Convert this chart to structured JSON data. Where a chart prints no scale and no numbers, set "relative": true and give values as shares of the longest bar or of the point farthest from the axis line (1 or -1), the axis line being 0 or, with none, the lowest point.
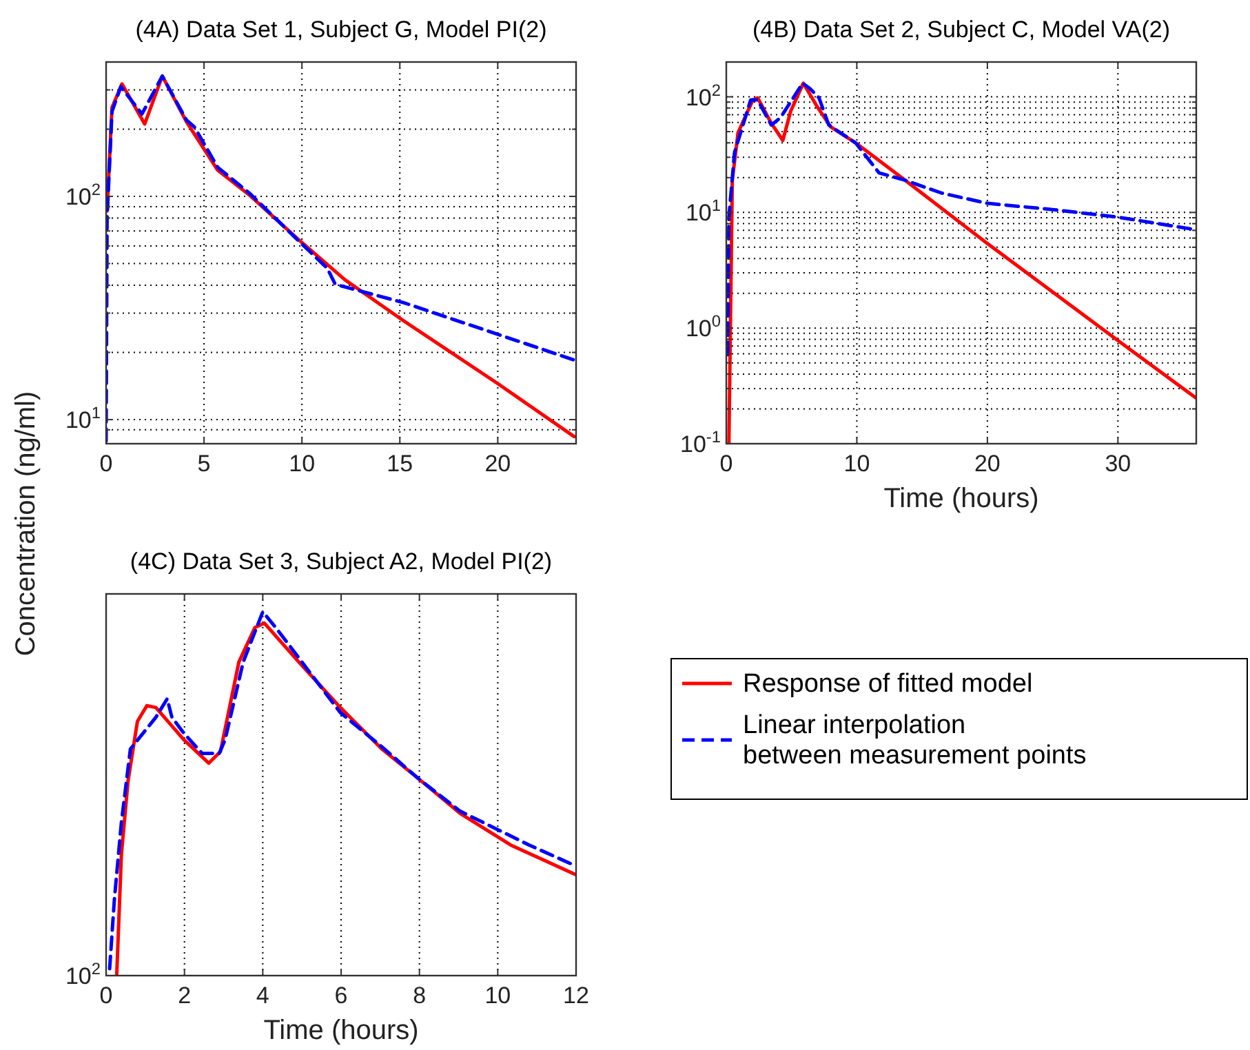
{
  "chart_data": [
    {
      "type": "line",
      "title": "(4A) Data Set 1, Subject G, Model PI(2)",
      "log": "y",
      "grid": true,
      "legend": false,
      "xlim": [
        0,
        24
      ],
      "xticks": [
        0,
        5,
        10,
        15,
        20
      ],
      "ylim": [
        7.8,
        400
      ],
      "yticks": [
        {
          "value": 9,
          "label": null
        },
        {
          "value": 10,
          "label": "10$^{1}$"
        },
        {
          "value": 20,
          "label": null
        },
        {
          "value": 30,
          "label": null
        },
        {
          "value": 40,
          "label": null
        },
        {
          "value": 50,
          "label": null
        },
        {
          "value": 60,
          "label": null
        },
        {
          "value": 70,
          "label": null
        },
        {
          "value": 80,
          "label": null
        },
        {
          "value": 90,
          "label": null
        },
        {
          "value": 100,
          "label": "10$^{2}$"
        },
        {
          "value": 200,
          "label": null
        },
        {
          "value": 300,
          "label": null
        }
      ],
      "series": [
        {
          "color": "#ff0000",
          "line_style": "solid",
          "x": [
            0.05,
            0.3,
            0.81,
            1.97,
            2.87,
            4.1,
            5.7,
            7.34,
            9.77,
            12.2,
            15.2,
            20,
            23.9
          ],
          "values": [
            86,
            250,
            319,
            211,
            346,
            216,
            131,
            101,
            64.7,
            42.3,
            27.7,
            14.5,
            8.4
          ]
        },
        {
          "color": "#0000ff",
          "line_style": "dashed",
          "x": [
            0,
            0.05,
            0.3,
            0.75,
            1.83,
            2.87,
            4.1,
            4.5,
            5.7,
            7.34,
            9.77,
            11.3,
            11.7,
            15.2,
            23.9
          ],
          "values": [
            8,
            80,
            240,
            310,
            234,
            346,
            220,
            205,
            135,
            103,
            64,
            47.6,
            40.4,
            33.4,
            18.5
          ]
        }
      ]
    },
    {
      "type": "line",
      "title": "(4B) Data Set 2, Subject C, Model VA(2)",
      "xlabel": "Time (hours)",
      "log": "y",
      "grid": true,
      "legend": false,
      "xlim": [
        0,
        36
      ],
      "xticks": [
        0,
        10,
        20,
        30
      ],
      "ylim": [
        0.1,
        200
      ],
      "yticks": [
        {
          "value": 0.1,
          "label": "10$^{-1}$"
        },
        {
          "value": 0.2,
          "label": null
        },
        {
          "value": 0.3,
          "label": null
        },
        {
          "value": 0.4,
          "label": null
        },
        {
          "value": 0.5,
          "label": null
        },
        {
          "value": 0.6,
          "label": null
        },
        {
          "value": 0.7,
          "label": null
        },
        {
          "value": 0.8,
          "label": null
        },
        {
          "value": 0.9,
          "label": null
        },
        {
          "value": 1,
          "label": "10$^{0}$"
        },
        {
          "value": 2,
          "label": null
        },
        {
          "value": 3,
          "label": null
        },
        {
          "value": 4,
          "label": null
        },
        {
          "value": 5,
          "label": null
        },
        {
          "value": 6,
          "label": null
        },
        {
          "value": 7,
          "label": null
        },
        {
          "value": 8,
          "label": null
        },
        {
          "value": 9,
          "label": null
        },
        {
          "value": 10,
          "label": "10$^{1}$"
        },
        {
          "value": 20,
          "label": null
        },
        {
          "value": 30,
          "label": null
        },
        {
          "value": 40,
          "label": null
        },
        {
          "value": 50,
          "label": null
        },
        {
          "value": 60,
          "label": null
        },
        {
          "value": 70,
          "label": null
        },
        {
          "value": 80,
          "label": null
        },
        {
          "value": 90,
          "label": null
        },
        {
          "value": 100,
          "label": "10$^{2}$"
        }
      ],
      "series": [
        {
          "color": "#ff0000",
          "line_style": "solid",
          "x": [
            0.2,
            0.46,
            0.9,
            2.04,
            2.4,
            3.45,
            4.33,
            4.93,
            5.9,
            6.97,
            8.0,
            9.9,
            12.96,
            19.9,
            30,
            35.95
          ],
          "values": [
            0.1,
            19,
            49,
            94,
            98,
            59,
            42,
            75,
            131,
            82,
            55,
            40,
            22,
            5.5,
            0.78,
            0.25
          ]
        },
        {
          "color": "#0000ff",
          "line_style": "dashed",
          "x": [
            0.1,
            0.2,
            0.63,
            1.87,
            2.4,
            3.45,
            4.15,
            5.85,
            6.4,
            7.1,
            7.85,
            9.9,
            11.7,
            13.7,
            16.5,
            20,
            25.3,
            30,
            35.95
          ],
          "values": [
            0.59,
            9.1,
            33,
            94,
            94,
            57,
            66,
            131,
            118,
            98,
            57,
            40,
            22,
            19,
            14.7,
            12,
            10.5,
            9.1,
            7.1
          ]
        }
      ]
    },
    {
      "type": "line",
      "title": "(4C) Data Set 3, Subject A2, Model PI(2)",
      "xlabel": "Time (hours)",
      "ylabel": "Concentration (ng/ml)",
      "relative": true,
      "grid": "x",
      "legend": "right",
      "xlim": [
        0,
        12
      ],
      "xticks": [
        0,
        2,
        4,
        6,
        8,
        10,
        12
      ],
      "annotations": [
        "10$^{2}$"
      ],
      "series": [
        {
          "name": "Response of fitted model",
          "color": "#ff0000",
          "line_style": "solid",
          "x": [
            0.27,
            0.39,
            0.56,
            0.8,
            1.04,
            1.27,
            1.98,
            2.62,
            2.92,
            3.39,
            3.8,
            4.04,
            4.92,
            5.98,
            7.04,
            7.98,
            9.04,
            10.33,
            12
          ],
          "values": [
            0,
            0.333,
            0.535,
            0.699,
            0.742,
            0.737,
            0.649,
            0.584,
            0.616,
            0.862,
            0.957,
            0.969,
            0.862,
            0.737,
            0.623,
            0.541,
            0.446,
            0.359,
            0.277
          ]
        },
        {
          "name": "Linear interpolation between measurement points",
          "color": "#0000ff",
          "line_style": "dashed",
          "x": [
            0.09,
            0.21,
            0.39,
            0.62,
            1.27,
            1.56,
            1.68,
            1.98,
            2.45,
            2.89,
            3.04,
            3.5,
            4.0,
            4.33,
            5.98,
            7.04,
            7.98,
            9.04,
            10.8,
            12
          ],
          "values": [
            0.019,
            0.208,
            0.421,
            0.623,
            0.71,
            0.761,
            0.71,
            0.667,
            0.611,
            0.611,
            0.649,
            0.862,
            1,
            0.957,
            0.723,
            0.629,
            0.541,
            0.452,
            0.359,
            0.301
          ]
        }
      ]
    }
  ]
}
